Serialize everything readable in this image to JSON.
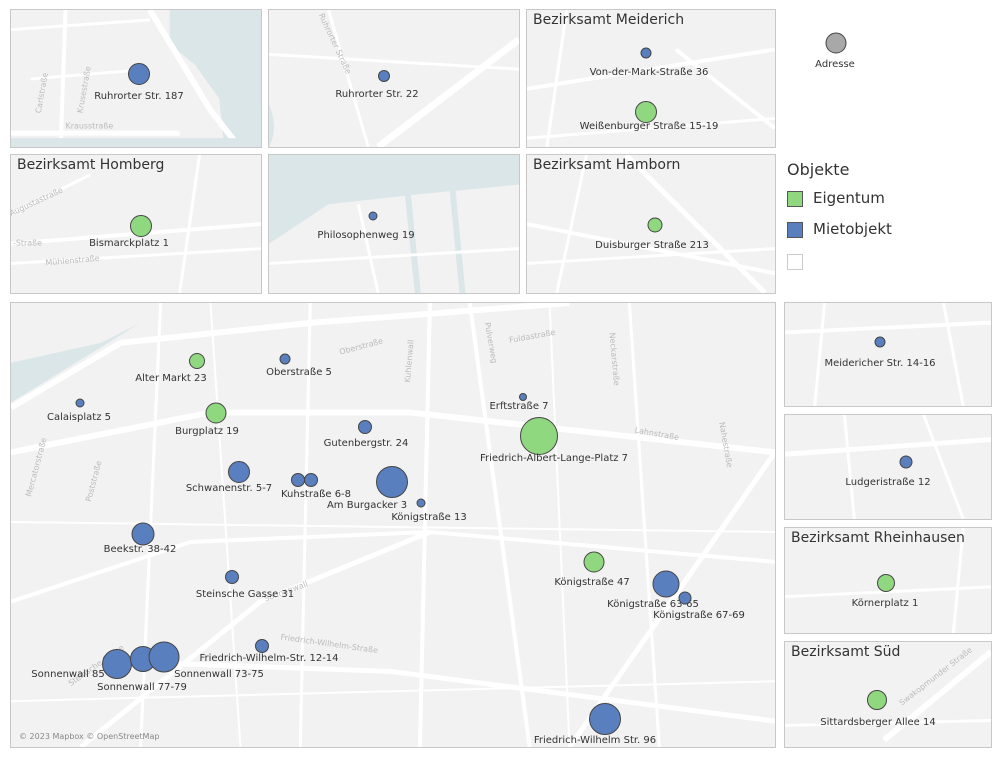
{
  "colors": {
    "eigentum": "#90d880",
    "mietobjekt": "#5a7fbf",
    "adresse": "#a8a8a8",
    "road": "#ffffff",
    "water": "#dbe6e9"
  },
  "legend_size": {
    "label": "Adresse"
  },
  "legend_obj": {
    "title": "Objekte",
    "items": [
      {
        "label": "Eigentum",
        "type": "eigentum"
      },
      {
        "label": "Mietobjekt",
        "type": "mietobjekt"
      },
      {
        "label": "",
        "type": "empty"
      }
    ]
  },
  "panels": [
    {
      "id": "p1",
      "title": "",
      "streets": [
        "Carlstraße",
        "Krusestraße",
        "Krausstraße"
      ],
      "markers": [
        {
          "label": "Ruhrorter Str. 187",
          "type": "mietobjekt"
        }
      ]
    },
    {
      "id": "p2",
      "title": "",
      "streets": [
        "Ruhrorter Straße"
      ],
      "markers": [
        {
          "label": "Ruhrorter Str. 22",
          "type": "mietobjekt"
        }
      ]
    },
    {
      "id": "p3",
      "title": "Bezirksamt Meiderich",
      "streets": [],
      "markers": [
        {
          "label": "Von-der-Mark-Straße 36",
          "type": "mietobjekt"
        },
        {
          "label": "Weißenburger Straße 15-19",
          "type": "eigentum"
        }
      ]
    },
    {
      "id": "p4",
      "title": "Bezirksamt Homberg",
      "streets": [
        "Augustastraße",
        "-Straße",
        "Mühlenstraße"
      ],
      "markers": [
        {
          "label": "Bismarckplatz 1",
          "type": "eigentum"
        }
      ]
    },
    {
      "id": "p5",
      "title": "",
      "streets": [],
      "markers": [
        {
          "label": "Philosophenweg 19",
          "type": "mietobjekt"
        }
      ]
    },
    {
      "id": "p6",
      "title": "Bezirksamt Hamborn",
      "streets": [],
      "markers": [
        {
          "label": "Duisburger Straße 213",
          "type": "eigentum"
        }
      ]
    },
    {
      "id": "p7",
      "title": "",
      "streets": [
        "Oberstraße",
        "Fuldastraße",
        "Kuhlenwall",
        "Pulverweg",
        "Neckarstraße",
        "Lahnstraße",
        "Nahestraße",
        "Sonnenwall",
        "Friedrich-Wilhelm-Straße",
        "Steinsche Gasse",
        "Poststraße",
        "Mercatorstraße"
      ],
      "attribution": "© 2023 Mapbox © OpenStreetMap",
      "markers": [
        {
          "label": "Alter Markt 23",
          "type": "eigentum"
        },
        {
          "label": "Oberstraße 5",
          "type": "mietobjekt"
        },
        {
          "label": "Calaisplatz 5",
          "type": "mietobjekt"
        },
        {
          "label": "Burgplatz 19",
          "type": "eigentum"
        },
        {
          "label": "Gutenbergstr. 24",
          "type": "mietobjekt"
        },
        {
          "label": "Erftstraße 7",
          "type": "mietobjekt"
        },
        {
          "label": "Friedrich-Albert-Lange-Platz 7",
          "type": "eigentum"
        },
        {
          "label": "Schwanenstr. 5-7",
          "type": "mietobjekt"
        },
        {
          "label": "Kuhstraße 6-8",
          "type": "mietobjekt"
        },
        {
          "label": "",
          "type": "mietobjekt"
        },
        {
          "label": "Am Burgacker 3",
          "type": "mietobjekt"
        },
        {
          "label": "Königstraße 13",
          "type": "mietobjekt"
        },
        {
          "label": "Beekstr. 38-42",
          "type": "mietobjekt"
        },
        {
          "label": "Königstraße 47",
          "type": "eigentum"
        },
        {
          "label": "Königstraße 63-65",
          "type": "mietobjekt"
        },
        {
          "label": "Königstraße 67-69",
          "type": "mietobjekt"
        },
        {
          "label": "Steinsche Gasse 31",
          "type": "mietobjekt"
        },
        {
          "label": "Friedrich-Wilhelm-Str. 12-14",
          "type": "mietobjekt"
        },
        {
          "label": "Sonnenwall 85",
          "type": "mietobjekt"
        },
        {
          "label": "Sonnenwall 77-79",
          "type": "mietobjekt"
        },
        {
          "label": "Sonnenwall 73-75",
          "type": "mietobjekt"
        },
        {
          "label": "Friedrich-Wilhelm Str. 96",
          "type": "mietobjekt"
        }
      ]
    },
    {
      "id": "p8",
      "title": "",
      "streets": [],
      "markers": [
        {
          "label": "Meidericher Str. 14-16",
          "type": "mietobjekt"
        }
      ]
    },
    {
      "id": "p9",
      "title": "",
      "streets": [],
      "markers": [
        {
          "label": "Ludgeristraße 12",
          "type": "mietobjekt"
        }
      ]
    },
    {
      "id": "p10",
      "title": "Bezirksamt Rheinhausen",
      "streets": [],
      "markers": [
        {
          "label": "Körnerplatz 1",
          "type": "eigentum"
        }
      ]
    },
    {
      "id": "p11",
      "title": "Bezirksamt Süd",
      "streets": [
        "Swakopmunder Straße"
      ],
      "markers": [
        {
          "label": "Sittardsberger Allee 14",
          "type": "eigentum"
        }
      ]
    }
  ]
}
